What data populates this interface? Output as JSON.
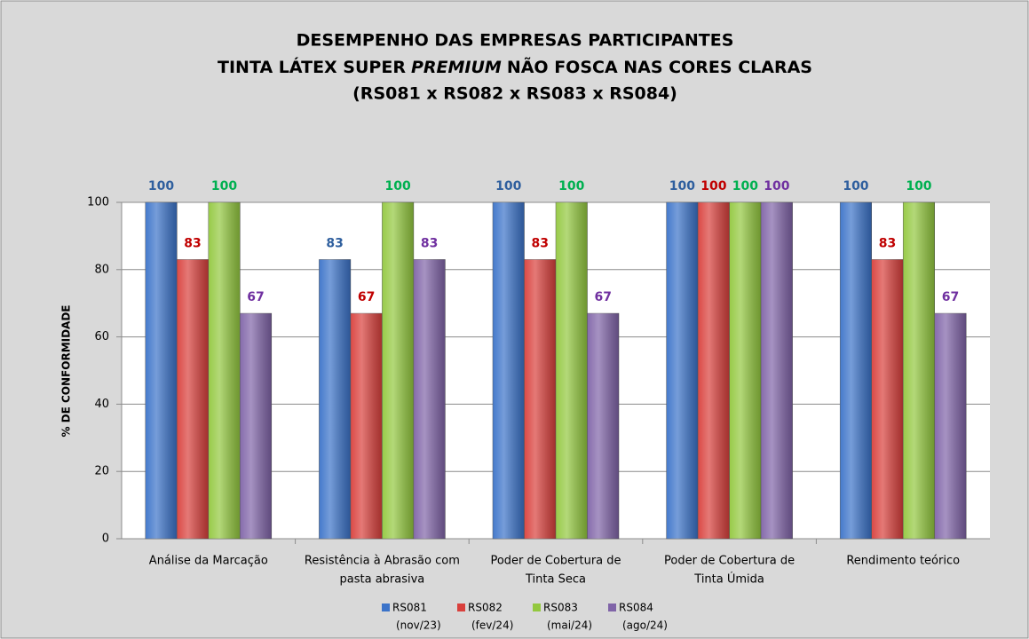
{
  "chart_data": {
    "type": "bar",
    "title": [
      "DESEMPENHO DAS EMPRESAS PARTICIPANTES",
      [
        "TINTA LÁTEX SUPER",
        "PREMIUM",
        "NÃO FOSCA NAS CORES CLARAS"
      ],
      "(RS081 x RS082 x RS083 x RS084)"
    ],
    "y_label": "% DE CONFORMIDADE",
    "categories": [
      [
        "Análise da Marcação"
      ],
      [
        "Resistência à Abrasão com",
        "pasta abrasiva"
      ],
      [
        "Poder de Cobertura de",
        "Tinta Seca"
      ],
      [
        "Poder de Cobertura de",
        "Tinta Úmida"
      ],
      [
        "Rendimento teórico"
      ]
    ],
    "series": [
      {
        "name": "RS081",
        "period": "(nov/23)",
        "color": "#3b73c9",
        "label_color": "#2f5f9e",
        "values": [
          100,
          83,
          100,
          100,
          100
        ]
      },
      {
        "name": "RS082",
        "period": "(fev/24)",
        "color": "#d9403c",
        "label_color": "#c00000",
        "values": [
          83,
          67,
          83,
          100,
          83
        ]
      },
      {
        "name": "RS083",
        "period": "(mai/24)",
        "color": "#93c83f",
        "label_color": "#00b050",
        "values": [
          100,
          100,
          100,
          100,
          100
        ]
      },
      {
        "name": "RS084",
        "period": "(ago/24)",
        "color": "#8064a8",
        "label_color": "#7030a0",
        "values": [
          67,
          83,
          67,
          100,
          67
        ]
      }
    ],
    "ylim": [
      0,
      100
    ],
    "yticks": [
      0,
      20,
      40,
      60,
      80,
      100
    ],
    "grid": true,
    "legend": "bottom"
  }
}
